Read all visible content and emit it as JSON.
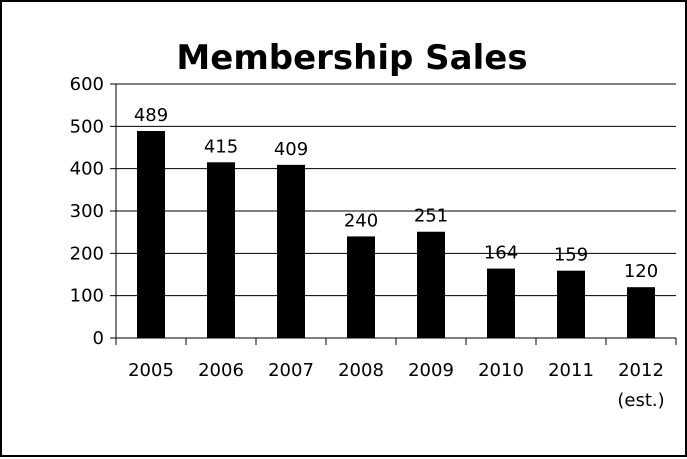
{
  "chart_data": {
    "type": "bar",
    "title": "Membership Sales",
    "xlabel": "",
    "ylabel": "",
    "categories": [
      [
        "2005"
      ],
      [
        "2006"
      ],
      [
        "2007"
      ],
      [
        "2008"
      ],
      [
        "2009"
      ],
      [
        "2010"
      ],
      [
        "2011"
      ],
      [
        "2012",
        "(est.)"
      ]
    ],
    "values": [
      489,
      415,
      409,
      240,
      251,
      164,
      159,
      120
    ],
    "data_labels": [
      "489",
      "415",
      "409",
      "240",
      "251",
      "164",
      "159",
      "120"
    ],
    "yticks": [
      "0",
      "100",
      "200",
      "300",
      "400",
      "500",
      "600"
    ],
    "ylim": [
      0,
      600
    ],
    "grid": true,
    "legend": "none",
    "colors": {
      "bar": "#000000",
      "grid": "#000000",
      "background": "#ffffff"
    }
  }
}
